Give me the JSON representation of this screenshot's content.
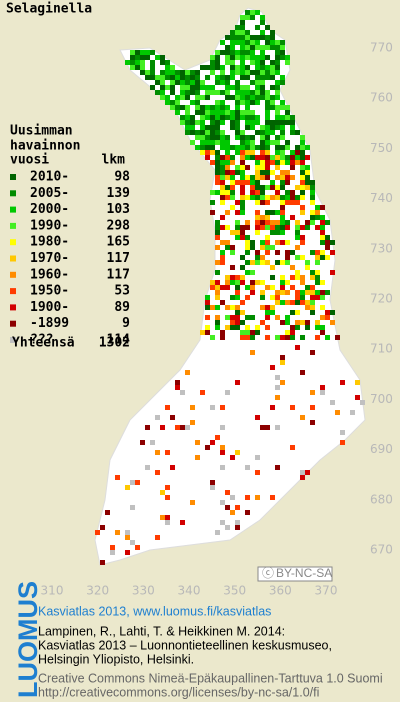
{
  "title": "Selaginella",
  "legend": {
    "header": [
      "Uusimman",
      "havainnon"
    ],
    "col_year": "vuosi",
    "col_count": "lkm",
    "entries": [
      {
        "label": "2010-",
        "count": 98,
        "color": "#006400"
      },
      {
        "label": "2005-",
        "count": 139,
        "color": "#008c00"
      },
      {
        "label": "2000-",
        "count": 103,
        "color": "#00c800"
      },
      {
        "label": "1990-",
        "count": 298,
        "color": "#44ee22"
      },
      {
        "label": "1980-",
        "count": 165,
        "color": "#ffff00"
      },
      {
        "label": "1970-",
        "count": 117,
        "color": "#ffc800"
      },
      {
        "label": "1960-",
        "count": 117,
        "color": "#ff8c00"
      },
      {
        "label": "1950-",
        "count": 53,
        "color": "#ff3c00"
      },
      {
        "label": "1900-",
        "count": 89,
        "color": "#d20000"
      },
      {
        "label": "-1899",
        "count": 9,
        "color": "#8c0000"
      },
      {
        "label": "???",
        "count": 114,
        "color": "#c0c0c0"
      }
    ],
    "total_label": "Yhteensä",
    "total": 1302
  },
  "map": {
    "xticks": [
      310,
      320,
      330,
      340,
      350,
      360,
      370
    ],
    "yticks": [
      770,
      760,
      750,
      740,
      730,
      720,
      710,
      700,
      690,
      680,
      670
    ]
  },
  "license_badge": "BY-NC-SA",
  "footer": {
    "logo": "LUOMUS",
    "headline": "Kasviatlas 2013, www.luomus.fi/kasviatlas",
    "citation": [
      "Lampinen, R., Lahti, T. & Heikkinen M. 2014:",
      "Kasviatlas 2013 – Luonnontieteellinen keskusmuseo,",
      "Helsingin Yliopisto, Helsinki."
    ],
    "license": [
      "Creative Commons Nimeä-Epäkaupallinen-Tarttuva 1.0 Suomi",
      "http://creativecommons.org/licenses/by-nc-sa/1.0/fi"
    ]
  }
}
